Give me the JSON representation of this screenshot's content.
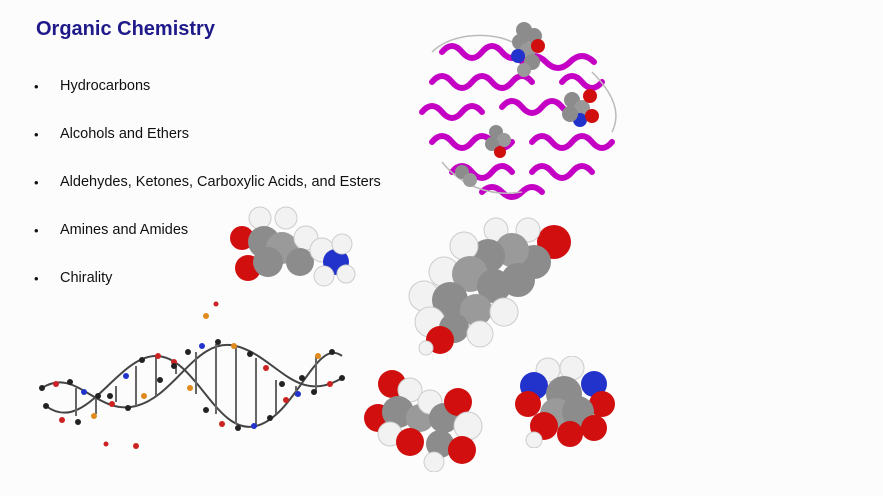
{
  "slide": {
    "title": "Organic Chemistry",
    "bullets": [
      "Hydrocarbons",
      "Alcohols and Ethers",
      "Aldehydes, Ketones, Carboxylic Acids, and Esters",
      "Amines and Amides",
      "Chirality"
    ],
    "bullet_glyph": "•"
  },
  "colors": {
    "title": "#1f1a8a",
    "protein_ribbon": "#c400c4",
    "carbon": "#8c8c8c",
    "hydrogen": "#f2f2f2",
    "oxygen": "#d10f0f",
    "nitrogen": "#2233cc",
    "phosphorus": "#e08a1e"
  }
}
